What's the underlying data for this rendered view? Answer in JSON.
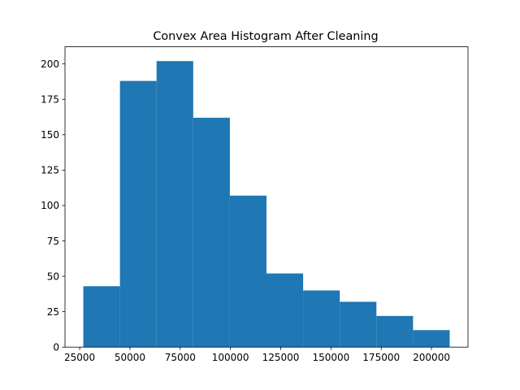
{
  "chart_data": {
    "type": "bar",
    "title": "Convex Area Histogram After Cleaning",
    "xlabel": "",
    "ylabel": "",
    "bin_edges": [
      26800,
      45025,
      63250,
      81475,
      99700,
      117925,
      136150,
      154375,
      172600,
      190825,
      209050
    ],
    "values": [
      43,
      188,
      202,
      162,
      107,
      52,
      40,
      32,
      22,
      12
    ],
    "xlim": [
      17687.5,
      218162.5
    ],
    "ylim": [
      0,
      212.1
    ],
    "xticks": [
      25000,
      50000,
      75000,
      100000,
      125000,
      150000,
      175000,
      200000
    ],
    "yticks": [
      0,
      25,
      50,
      75,
      100,
      125,
      150,
      175,
      200
    ],
    "bar_color": "#1f77b4",
    "grid": false,
    "legend": "none"
  }
}
